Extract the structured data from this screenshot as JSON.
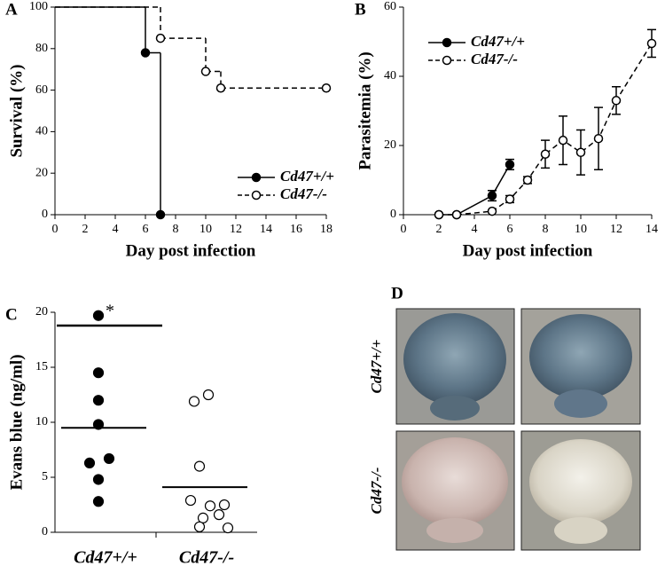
{
  "chart_data": [
    {
      "type": "step",
      "label": "A",
      "xlabel": "Day post infection",
      "ylabel": "Survival (%)",
      "xlim": [
        0,
        18
      ],
      "xticks": [
        0,
        2,
        4,
        6,
        8,
        10,
        12,
        14,
        16,
        18
      ],
      "ylim": [
        0,
        100
      ],
      "yticks": [
        0,
        20,
        40,
        60,
        80,
        100
      ],
      "legend": "lower right",
      "series": [
        {
          "name": "Cd47+/+",
          "color": "#000000",
          "marker": "filled",
          "dashed": false,
          "x": [
            0,
            6,
            7
          ],
          "values": [
            100,
            78,
            0
          ]
        },
        {
          "name": "Cd47-/-",
          "color": "#000000",
          "marker": "open",
          "dashed": true,
          "x": [
            0,
            7,
            10,
            11,
            18
          ],
          "values": [
            100,
            85,
            69,
            61,
            61
          ]
        }
      ]
    },
    {
      "type": "line",
      "label": "B",
      "xlabel": "Day post infection",
      "ylabel": "Parasitemia (%)",
      "xlim": [
        0,
        14
      ],
      "xticks": [
        0,
        2,
        4,
        6,
        8,
        10,
        12,
        14
      ],
      "ylim": [
        0,
        60
      ],
      "yticks": [
        0,
        20,
        40,
        60
      ],
      "legend": "upper left",
      "series": [
        {
          "name": "Cd47+/+",
          "color": "#000000",
          "marker": "filled",
          "dashed": false,
          "x": [
            2,
            3,
            5,
            6
          ],
          "values": [
            0,
            0,
            5.5,
            14.5
          ],
          "errors": [
            0,
            0,
            1.5,
            1.5
          ]
        },
        {
          "name": "Cd47-/-",
          "color": "#000000",
          "marker": "open",
          "dashed": true,
          "x": [
            2,
            3,
            5,
            6,
            7,
            8,
            9,
            10,
            11,
            12,
            14
          ],
          "values": [
            0,
            0,
            1,
            4.5,
            10,
            17.5,
            21.5,
            18,
            22,
            33,
            49.5
          ],
          "errors": [
            0,
            0,
            0,
            1,
            1,
            4,
            7,
            6.5,
            9,
            4,
            4
          ]
        }
      ]
    },
    {
      "type": "strip",
      "label": "C",
      "ylabel": "Evans blue (ng/ml)",
      "significance": "*",
      "ylim": [
        0,
        20
      ],
      "yticks": [
        0,
        5,
        10,
        15,
        20
      ],
      "categories": [
        "Cd47+/+",
        "Cd47-/-"
      ],
      "series": [
        {
          "name": "Cd47+/+",
          "marker": "filled",
          "values": [
            19.7,
            14.5,
            12,
            9.8,
            6.7,
            6.3,
            4.8,
            2.8
          ],
          "mean": 9.5
        },
        {
          "name": "Cd47-/-",
          "marker": "open",
          "values": [
            12.5,
            11.9,
            6,
            2.9,
            2.5,
            2.4,
            1.6,
            1.3,
            0.5,
            0.4
          ],
          "mean": 4.1
        }
      ]
    }
  ],
  "panel_d": {
    "label": "D",
    "rows": [
      "Cd47+/+",
      "Cd47-/-"
    ]
  }
}
